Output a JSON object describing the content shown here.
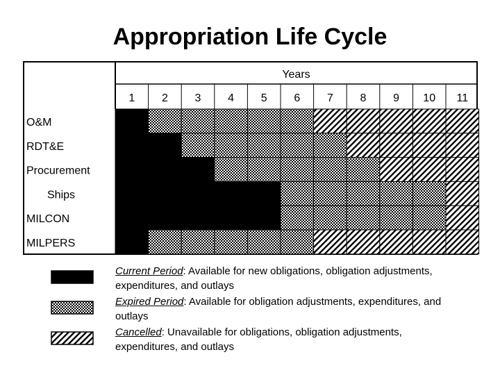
{
  "title": "Appropriation Life Cycle",
  "header": {
    "years_label": "Years"
  },
  "years": [
    "1",
    "2",
    "3",
    "4",
    "5",
    "6",
    "7",
    "8",
    "9",
    "10",
    "11"
  ],
  "rows": [
    {
      "label": "O&M",
      "indent": false,
      "states": [
        "current",
        "expired",
        "expired",
        "expired",
        "expired",
        "expired",
        "cancelled",
        "cancelled",
        "cancelled",
        "cancelled",
        "cancelled"
      ]
    },
    {
      "label": "RDT&E",
      "indent": false,
      "states": [
        "current",
        "current",
        "expired",
        "expired",
        "expired",
        "expired",
        "expired",
        "cancelled",
        "cancelled",
        "cancelled",
        "cancelled"
      ]
    },
    {
      "label": "Procurement",
      "indent": false,
      "states": [
        "current",
        "current",
        "current",
        "expired",
        "expired",
        "expired",
        "expired",
        "expired",
        "cancelled",
        "cancelled",
        "cancelled"
      ]
    },
    {
      "label": "Ships",
      "indent": true,
      "states": [
        "current",
        "current",
        "current",
        "current",
        "current",
        "expired",
        "expired",
        "expired",
        "expired",
        "expired",
        "cancelled"
      ]
    },
    {
      "label": "MILCON",
      "indent": false,
      "states": [
        "current",
        "current",
        "current",
        "current",
        "current",
        "expired",
        "expired",
        "expired",
        "expired",
        "expired",
        "cancelled"
      ]
    },
    {
      "label": "MILPERS",
      "indent": false,
      "states": [
        "current",
        "expired",
        "expired",
        "expired",
        "expired",
        "expired",
        "cancelled",
        "cancelled",
        "cancelled",
        "cancelled",
        "cancelled"
      ]
    }
  ],
  "legend": [
    {
      "key": "current",
      "term": "Current Period",
      "text": ":  Available for new obligations, obligation adjustments, expenditures, and outlays"
    },
    {
      "key": "expired",
      "term": "Expired Period",
      "text": ":  Available for obligation adjustments, expenditures, and outlays"
    },
    {
      "key": "cancelled",
      "term": "Cancelled",
      "text": ":  Unavailable for obligations, obligation adjustments, expenditures, and outlays"
    }
  ]
}
